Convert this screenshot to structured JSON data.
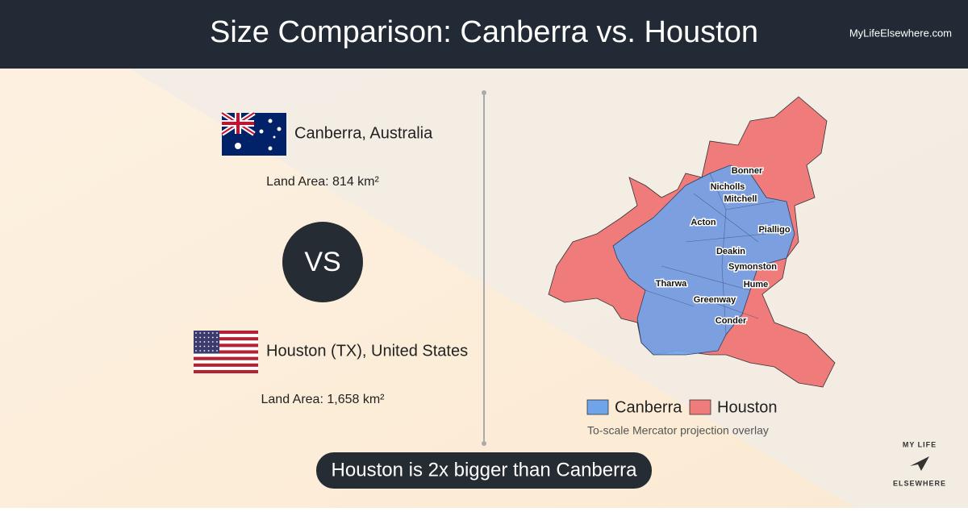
{
  "header": {
    "title": "Size Comparison: Canberra vs. Houston",
    "site": "MyLifeElsewhere.com"
  },
  "cities": [
    {
      "name": "Canberra, Australia",
      "land_area": "Land Area: 814 km²"
    },
    {
      "name": "Houston (TX), United States",
      "land_area": "Land Area: 1,658 km²"
    }
  ],
  "vs": "VS",
  "map": {
    "labels": [
      "Bonner",
      "Nicholls",
      "Mitchell",
      "Acton",
      "Pialligo",
      "Deakin",
      "Symonston",
      "Tharwa",
      "Hume",
      "Greenway",
      "Conder"
    ]
  },
  "legend": [
    {
      "name": "Canberra",
      "color": "#6fa3ea"
    },
    {
      "name": "Houston",
      "color": "#ef7b7b"
    }
  ],
  "caption": "To-scale Mercator projection overlay",
  "banner": "Houston is 2x bigger than Canberra",
  "logo": {
    "top": "MY LIFE",
    "bottom": "ELSEWHERE"
  }
}
